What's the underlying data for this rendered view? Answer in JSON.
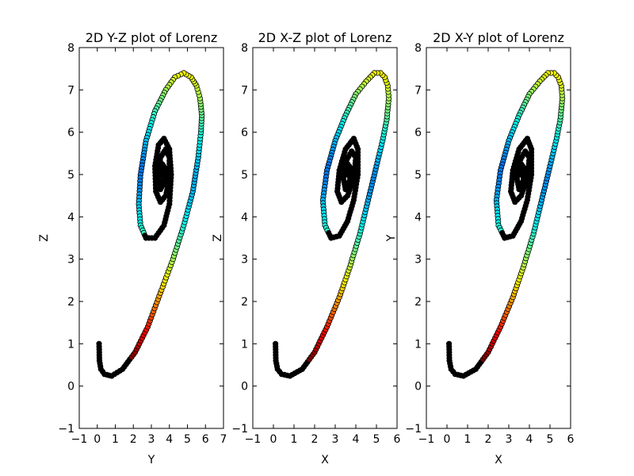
{
  "chart_data": [
    {
      "type": "scatter",
      "title": "2D Y-Z plot of Lorenz",
      "xlabel": "Y",
      "ylabel": "Z",
      "xlim": [
        -1,
        7
      ],
      "ylim": [
        -1,
        8
      ],
      "xticks": [
        "−1",
        "0",
        "1",
        "2",
        "3",
        "4",
        "5",
        "6",
        "7"
      ],
      "yticks": [
        "−1",
        "0",
        "1",
        "2",
        "3",
        "4",
        "5",
        "6",
        "7",
        "8"
      ],
      "grid": false,
      "colormap": "jet",
      "series": [
        {
          "x": [
            0.1,
            0.12,
            0.2,
            0.4,
            0.8,
            1.4,
            2.1,
            2.8,
            3.5,
            4.2,
            4.8,
            5.3,
            5.6,
            5.75,
            5.8,
            5.7,
            5.5,
            5.2,
            4.8,
            4.3,
            3.8,
            3.2,
            2.7,
            2.4,
            2.3,
            2.4,
            2.7,
            3.2,
            3.7,
            4.0,
            4.1,
            4.0,
            3.7,
            3.4,
            3.2,
            3.25,
            3.5,
            3.8,
            4.0,
            4.0,
            3.8,
            3.5,
            3.4,
            3.5,
            3.7,
            3.75,
            3.6,
            3.55
          ],
          "y": [
            1.0,
            0.6,
            0.4,
            0.28,
            0.24,
            0.4,
            0.8,
            1.4,
            2.2,
            3.0,
            3.8,
            4.6,
            5.4,
            6.0,
            6.4,
            6.8,
            7.1,
            7.3,
            7.4,
            7.3,
            7.0,
            6.5,
            5.8,
            5.0,
            4.3,
            3.8,
            3.5,
            3.5,
            3.8,
            4.3,
            5.0,
            5.6,
            5.85,
            5.7,
            5.2,
            4.6,
            4.35,
            4.5,
            4.9,
            5.4,
            5.6,
            5.4,
            5.0,
            4.65,
            4.8,
            5.15,
            5.25,
            5.0
          ]
        }
      ]
    },
    {
      "type": "scatter",
      "title": "2D X-Z plot of Lorenz",
      "xlabel": "X",
      "ylabel": "Z",
      "xlim": [
        -1,
        6
      ],
      "ylim": [
        -1,
        8
      ],
      "xticks": [
        "−1",
        "0",
        "1",
        "2",
        "3",
        "4",
        "5",
        "6"
      ],
      "yticks": [
        "−1",
        "0",
        "1",
        "2",
        "3",
        "4",
        "5",
        "6",
        "7",
        "8"
      ],
      "grid": false,
      "colormap": "jet",
      "series": [
        {
          "x": [
            0.1,
            0.12,
            0.2,
            0.4,
            0.8,
            1.4,
            2.0,
            2.6,
            3.2,
            3.7,
            4.2,
            4.6,
            5.0,
            5.3,
            5.5,
            5.6,
            5.55,
            5.4,
            5.2,
            4.9,
            4.5,
            4.0,
            3.5,
            3.0,
            2.6,
            2.4,
            2.5,
            2.8,
            3.2,
            3.6,
            3.9,
            4.1,
            4.1,
            3.9,
            3.5,
            3.2,
            3.1,
            3.3,
            3.6,
            3.9,
            4.0,
            3.8,
            3.5,
            3.4,
            3.5,
            3.7,
            3.75,
            3.6,
            3.55
          ],
          "y": [
            1.0,
            0.6,
            0.4,
            0.28,
            0.24,
            0.4,
            0.8,
            1.4,
            2.1,
            2.8,
            3.6,
            4.4,
            5.2,
            5.8,
            6.3,
            6.8,
            7.1,
            7.3,
            7.4,
            7.4,
            7.2,
            6.9,
            6.4,
            5.8,
            5.1,
            4.4,
            3.8,
            3.5,
            3.55,
            3.9,
            4.4,
            5.0,
            5.6,
            5.85,
            5.6,
            5.1,
            4.6,
            4.35,
            4.5,
            4.9,
            5.4,
            5.55,
            5.3,
            4.9,
            4.65,
            4.85,
            5.15,
            5.25,
            5.0
          ]
        }
      ]
    },
    {
      "type": "scatter",
      "title": "2D X-Y plot of Lorenz",
      "xlabel": "X",
      "ylabel": "Y",
      "xlim": [
        -1,
        6
      ],
      "ylim": [
        -1,
        8
      ],
      "xticks": [
        "−1",
        "0",
        "1",
        "2",
        "3",
        "4",
        "5",
        "6"
      ],
      "yticks": [
        "−1",
        "0",
        "1",
        "2",
        "3",
        "4",
        "5",
        "6",
        "7",
        "8"
      ],
      "grid": false,
      "colormap": "jet",
      "series": [
        {
          "x": [
            0.1,
            0.12,
            0.2,
            0.4,
            0.8,
            1.4,
            2.0,
            2.6,
            3.2,
            3.7,
            4.2,
            4.6,
            5.0,
            5.3,
            5.5,
            5.6,
            5.55,
            5.4,
            5.2,
            4.9,
            4.5,
            4.0,
            3.5,
            3.0,
            2.6,
            2.4,
            2.5,
            2.8,
            3.2,
            3.6,
            3.9,
            4.1,
            4.1,
            3.9,
            3.5,
            3.2,
            3.1,
            3.3,
            3.6,
            3.9,
            4.0,
            3.8,
            3.5,
            3.4,
            3.5,
            3.7,
            3.75,
            3.6,
            3.55
          ],
          "y": [
            1.0,
            0.6,
            0.4,
            0.28,
            0.24,
            0.4,
            0.8,
            1.4,
            2.1,
            2.8,
            3.6,
            4.4,
            5.2,
            5.8,
            6.3,
            6.8,
            7.1,
            7.3,
            7.4,
            7.4,
            7.2,
            6.9,
            6.4,
            5.8,
            5.1,
            4.4,
            3.8,
            3.5,
            3.55,
            3.9,
            4.4,
            5.0,
            5.6,
            5.85,
            5.6,
            5.1,
            4.6,
            4.35,
            4.5,
            4.9,
            5.4,
            5.55,
            5.3,
            4.9,
            4.65,
            4.85,
            5.15,
            5.25,
            5.0
          ]
        }
      ]
    }
  ]
}
